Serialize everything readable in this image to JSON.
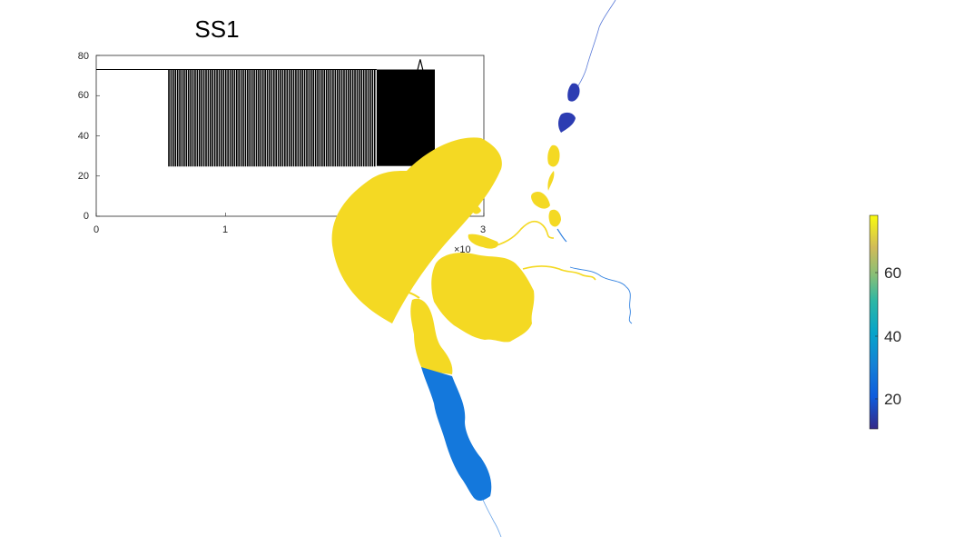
{
  "chart_data": [
    {
      "type": "line",
      "title": "SS1",
      "xlabel": "",
      "ylabel": "",
      "xlim": [
        0,
        3
      ],
      "ylim": [
        0,
        80
      ],
      "x_ticks": [
        "0",
        "1",
        "3"
      ],
      "y_ticks": [
        "0",
        "20",
        "40",
        "60",
        "80"
      ],
      "x_exponent_label": "×10",
      "grid": false,
      "series": [
        {
          "segments": [
            {
              "x_start": 0.0,
              "x_end": 0.56,
              "pattern": "flat",
              "value": 73
            },
            {
              "x_start": 0.56,
              "x_end": 2.17,
              "pattern": "oscillating",
              "low": 25,
              "high": 73,
              "cycles": 95
            },
            {
              "x_start": 2.17,
              "x_end": 2.62,
              "pattern": "dense",
              "low": 25,
              "high": 73,
              "spike": 78
            }
          ]
        }
      ]
    },
    {
      "type": "heatmap",
      "title": "",
      "colorbar": {
        "ticks": [
          "20",
          "40",
          "60"
        ],
        "range": [
          10,
          79
        ],
        "colormap": "parula"
      },
      "regions": [
        {
          "value": 79,
          "color": "#f4d923"
        },
        {
          "value": 22,
          "color": "#1478dc"
        },
        {
          "value": 12,
          "color": "#2c3cb2"
        }
      ]
    }
  ]
}
